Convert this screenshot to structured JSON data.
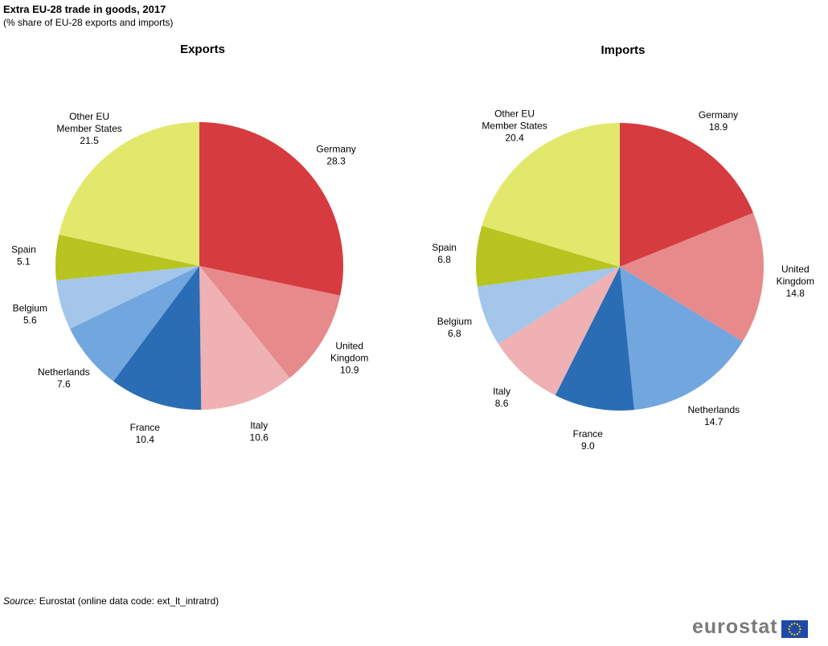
{
  "header": {
    "title": "Extra EU-28 trade in goods, 2017",
    "subtitle": "(% share of EU-28 exports and imports)"
  },
  "footer": {
    "source_label": "Source:",
    "source_text": "Eurostat (online data code: ext_lt_intratrd)",
    "logo_text": "eurostat"
  },
  "colors": {
    "Germany": "#d63b40",
    "United Kingdom": "#e68a8b",
    "Italy": "#efb1b3",
    "France": "#2a6db5",
    "Netherlands": "#72a6df",
    "Belgium": "#a3c6ea",
    "Spain": "#b8c41f",
    "Other EU Member States": "#e2e86c"
  },
  "chart_data": [
    {
      "type": "pie",
      "title": "Exports",
      "categories": [
        "Germany",
        "United Kingdom",
        "Italy",
        "France",
        "Netherlands",
        "Belgium",
        "Spain",
        "Other EU Member States"
      ],
      "values": [
        28.3,
        10.9,
        10.6,
        10.4,
        7.6,
        5.6,
        5.1,
        21.5
      ],
      "labels": [
        [
          "Germany",
          "28.3"
        ],
        [
          "United",
          "Kingdom",
          "10.9"
        ],
        [
          "Italy",
          "10.6"
        ],
        [
          "France",
          "10.4"
        ],
        [
          "Netherlands",
          "7.6"
        ],
        [
          "Belgium",
          "5.6"
        ],
        [
          "Spain",
          "5.1"
        ],
        [
          "Other EU",
          "Member  States",
          "21.5"
        ]
      ]
    },
    {
      "type": "pie",
      "title": "Imports",
      "categories": [
        "Germany",
        "United Kingdom",
        "Netherlands",
        "France",
        "Italy",
        "Belgium",
        "Spain",
        "Other EU Member States"
      ],
      "values": [
        18.9,
        14.8,
        14.7,
        9.0,
        8.6,
        6.8,
        6.8,
        20.4
      ],
      "labels": [
        [
          "Germany",
          "18.9"
        ],
        [
          "United",
          "Kingdom",
          "14.8"
        ],
        [
          "Netherlands",
          "14.7"
        ],
        [
          "France",
          "9.0"
        ],
        [
          "Italy",
          "8.6"
        ],
        [
          "Belgium",
          "6.8"
        ],
        [
          "Spain",
          "6.8"
        ],
        [
          "Other EU",
          "Member  States",
          "20.4"
        ]
      ]
    }
  ]
}
